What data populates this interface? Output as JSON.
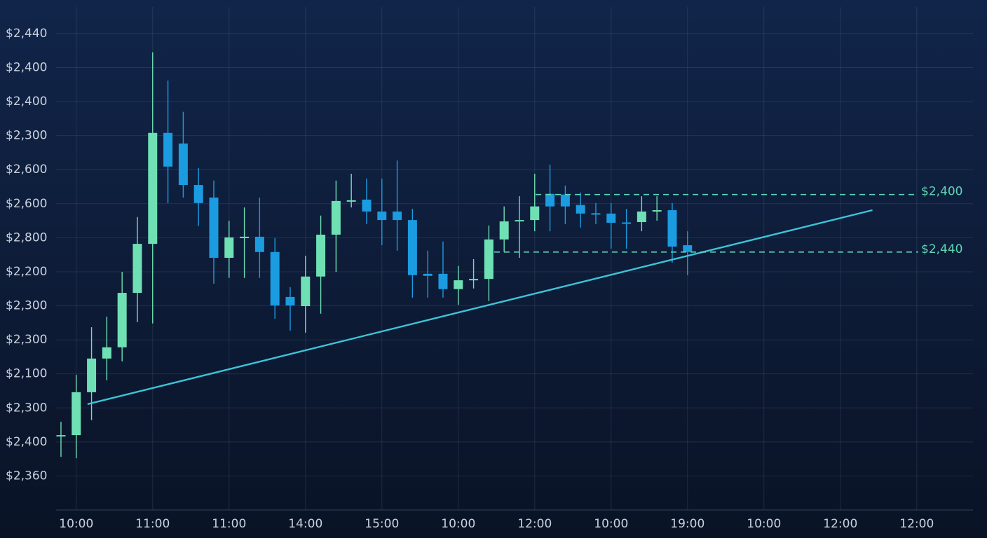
{
  "chart_data": {
    "type": "candlestick",
    "up_color": "#6fe0b4",
    "down_color": "#1b9be0",
    "grid": true,
    "xlim": [
      -0.32,
      59.68
    ],
    "ylim": [
      0,
      14.78
    ],
    "xticks": [
      {
        "value": 1,
        "label": "10:00"
      },
      {
        "value": 6,
        "label": "11:00"
      },
      {
        "value": 11,
        "label": "11:00"
      },
      {
        "value": 16,
        "label": "14:00"
      },
      {
        "value": 21,
        "label": "15:00"
      },
      {
        "value": 26,
        "label": "10:00"
      },
      {
        "value": 31,
        "label": "12:00"
      },
      {
        "value": 36,
        "label": "10:00"
      },
      {
        "value": 41,
        "label": "19:00"
      },
      {
        "value": 46,
        "label": "10:00"
      },
      {
        "value": 51,
        "label": "12:00"
      },
      {
        "value": 56,
        "label": "12:00"
      }
    ],
    "yticks": [
      {
        "value": 14,
        "label": "$2,440"
      },
      {
        "value": 13,
        "label": "$2,400"
      },
      {
        "value": 12,
        "label": "$2,400"
      },
      {
        "value": 11,
        "label": "$2,300"
      },
      {
        "value": 10,
        "label": "$2,600"
      },
      {
        "value": 9,
        "label": "$2,600"
      },
      {
        "value": 8,
        "label": "$2,800"
      },
      {
        "value": 7,
        "label": "$2,200"
      },
      {
        "value": 6,
        "label": "$2,300"
      },
      {
        "value": 5,
        "label": "$2,300"
      },
      {
        "value": 4,
        "label": "$2,100"
      },
      {
        "value": 3,
        "label": "$2,300"
      },
      {
        "value": 2,
        "label": "$2,400"
      },
      {
        "value": 1,
        "label": "$2,360"
      }
    ],
    "x": [
      0,
      1,
      2,
      3,
      4,
      5,
      6,
      7,
      8,
      9,
      10,
      11,
      12,
      13,
      14,
      15,
      16,
      17,
      18,
      19,
      20,
      21,
      22,
      23,
      24,
      25,
      26,
      27,
      28,
      29,
      30,
      31,
      32,
      33,
      34,
      35,
      36,
      37,
      38,
      39,
      40,
      41
    ],
    "open": [
      2.19,
      2.2,
      3.46,
      4.45,
      4.78,
      6.38,
      7.82,
      11.08,
      10.77,
      9.55,
      9.18,
      7.41,
      8.02,
      8.03,
      7.58,
      6.26,
      5.99,
      6.86,
      8.09,
      9.09,
      9.12,
      8.77,
      8.77,
      8.52,
      6.94,
      6.94,
      6.49,
      6.78,
      6.79,
      7.95,
      8.51,
      8.52,
      9.29,
      9.27,
      8.96,
      8.72,
      8.71,
      8.45,
      8.46,
      8.8,
      8.81,
      7.78
    ],
    "close": [
      2.2,
      3.46,
      4.45,
      4.78,
      6.38,
      7.82,
      11.08,
      10.09,
      9.55,
      9.02,
      7.41,
      8.01,
      8.03,
      7.58,
      6.01,
      6.01,
      6.86,
      8.09,
      9.08,
      9.1,
      8.77,
      8.52,
      8.52,
      6.9,
      6.88,
      6.49,
      6.75,
      6.79,
      7.95,
      8.48,
      8.52,
      8.92,
      8.92,
      8.92,
      8.71,
      8.71,
      8.44,
      8.44,
      8.77,
      8.81,
      7.74,
      7.58
    ],
    "high": [
      2.59,
      3.97,
      5.37,
      5.68,
      7.0,
      8.61,
      13.45,
      12.62,
      11.7,
      10.05,
      9.68,
      8.5,
      8.89,
      9.18,
      7.99,
      6.55,
      7.47,
      8.65,
      9.68,
      9.88,
      9.74,
      9.74,
      10.27,
      8.85,
      7.62,
      7.89,
      7.17,
      7.37,
      8.36,
      8.92,
      9.22,
      9.88,
      10.15,
      9.53,
      9.33,
      9.02,
      9.02,
      8.85,
      9.22,
      9.22,
      9.02,
      8.19
    ],
    "low": [
      1.56,
      1.52,
      2.64,
      3.81,
      4.37,
      5.52,
      5.48,
      9.02,
      9.18,
      8.34,
      6.65,
      6.82,
      6.82,
      6.82,
      5.62,
      5.27,
      5.21,
      5.77,
      7.0,
      8.89,
      8.4,
      7.78,
      7.62,
      6.24,
      6.24,
      6.24,
      6.03,
      6.51,
      6.14,
      7.58,
      7.41,
      8.19,
      8.19,
      8.4,
      8.3,
      8.4,
      7.68,
      7.68,
      8.19,
      8.5,
      7.27,
      6.9
    ],
    "trendline": {
      "x": [
        1.74,
        53.1
      ],
      "values": [
        3.11,
        8.81
      ],
      "color": "#3cc4d8"
    },
    "levels": [
      {
        "label": "$2,400",
        "value": 9.27,
        "x": [
          31.06,
          56.1
        ],
        "color": "#5fd6b4"
      },
      {
        "label": "$2,440",
        "value": 7.58,
        "x": [
          28.35,
          56.1
        ],
        "color": "#5fd6b4"
      }
    ]
  }
}
